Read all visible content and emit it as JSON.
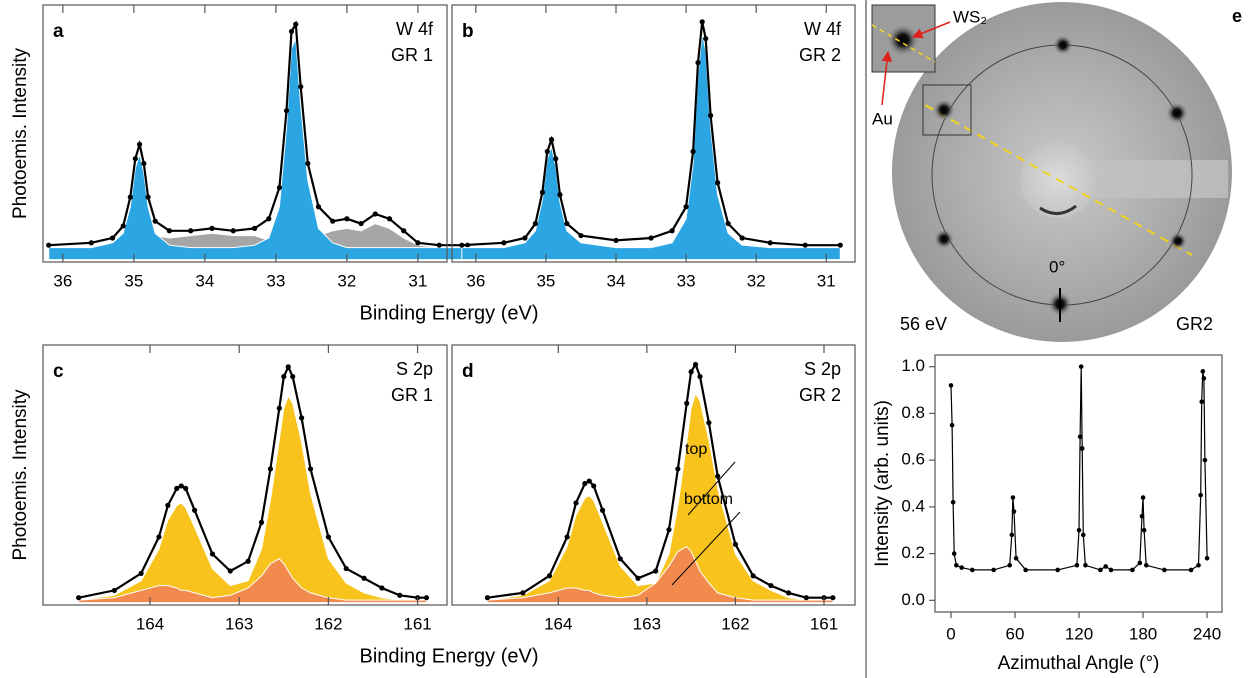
{
  "chart_data": [
    {
      "type": "spectrum",
      "panel_label": "a",
      "title": [
        "W 4f",
        "GR 1"
      ],
      "ylabel": "Photoemis. Intensity",
      "xlabel": "Binding Energy (eV)",
      "x": [
        36.2,
        35.6,
        35.3,
        35.15,
        35.05,
        34.98,
        34.92,
        34.86,
        34.8,
        34.7,
        34.5,
        34.2,
        33.9,
        33.6,
        33.3,
        33.1,
        32.95,
        32.85,
        32.78,
        32.72,
        32.65,
        32.55,
        32.4,
        32.2,
        32.0,
        31.8,
        31.6,
        31.4,
        31.2,
        31.0,
        30.7,
        30.3
      ],
      "xlim": [
        36.28,
        30.59
      ],
      "xticks": [
        36,
        35,
        34,
        33,
        32,
        31
      ],
      "ylim": [
        -0.01,
        1.06
      ],
      "series": [
        {
          "style": "area",
          "color": "#a6a6a6",
          "values": [
            0.05,
            0.05,
            0.05,
            0.05,
            0.05,
            0.05,
            0.06,
            0.07,
            0.09,
            0.1,
            0.09,
            0.1,
            0.11,
            0.1,
            0.1,
            0.08,
            0.08,
            0.09,
            0.11,
            0.12,
            0.1,
            0.09,
            0.1,
            0.12,
            0.13,
            0.12,
            0.15,
            0.13,
            0.09,
            0.06,
            0.05,
            0.05
          ]
        },
        {
          "style": "area",
          "color": "#2ba6e3",
          "values": [
            0.05,
            0.05,
            0.07,
            0.11,
            0.22,
            0.38,
            0.44,
            0.36,
            0.22,
            0.11,
            0.06,
            0.05,
            0.05,
            0.05,
            0.06,
            0.09,
            0.22,
            0.55,
            0.88,
            0.92,
            0.64,
            0.33,
            0.13,
            0.07,
            0.05,
            0.05,
            0.05,
            0.05,
            0.05,
            0.05,
            0.05,
            0.05
          ]
        },
        {
          "style": "points",
          "color": "#000000",
          "values": [
            0.06,
            0.07,
            0.09,
            0.14,
            0.26,
            0.42,
            0.48,
            0.4,
            0.26,
            0.16,
            0.12,
            0.12,
            0.13,
            0.12,
            0.13,
            0.17,
            0.3,
            0.62,
            0.95,
            0.98,
            0.72,
            0.4,
            0.22,
            0.16,
            0.17,
            0.15,
            0.19,
            0.17,
            0.12,
            0.07,
            0.06,
            0.06
          ]
        }
      ]
    },
    {
      "type": "spectrum",
      "panel_label": "b",
      "title": [
        "W 4f",
        "GR 2"
      ],
      "x": [
        36.2,
        35.6,
        35.3,
        35.15,
        35.05,
        34.98,
        34.92,
        34.86,
        34.8,
        34.7,
        34.5,
        34.0,
        33.5,
        33.2,
        33.0,
        32.9,
        32.83,
        32.77,
        32.72,
        32.65,
        32.55,
        32.4,
        32.2,
        31.8,
        31.3,
        30.8
      ],
      "xlim": [
        36.34,
        30.59
      ],
      "xticks": [
        36,
        35,
        34,
        33,
        32,
        31
      ],
      "ylim": [
        -0.01,
        1.06
      ],
      "series": [
        {
          "style": "area",
          "color": "#2ba6e3",
          "values": [
            0.05,
            0.05,
            0.07,
            0.12,
            0.25,
            0.42,
            0.47,
            0.39,
            0.24,
            0.12,
            0.07,
            0.05,
            0.05,
            0.07,
            0.17,
            0.4,
            0.77,
            0.94,
            0.87,
            0.55,
            0.27,
            0.11,
            0.06,
            0.05,
            0.05,
            0.05
          ]
        },
        {
          "style": "points",
          "color": "#000000",
          "values": [
            0.06,
            0.07,
            0.09,
            0.15,
            0.28,
            0.45,
            0.5,
            0.42,
            0.27,
            0.15,
            0.1,
            0.08,
            0.09,
            0.12,
            0.22,
            0.45,
            0.82,
            0.99,
            0.92,
            0.6,
            0.32,
            0.15,
            0.09,
            0.07,
            0.06,
            0.06
          ]
        }
      ]
    },
    {
      "type": "spectrum",
      "panel_label": "c",
      "title": [
        "S 2p",
        "GR 1"
      ],
      "ylabel": "Photoemis. Intensity",
      "xlabel": "Binding Energy (eV)",
      "x": [
        164.8,
        164.4,
        164.1,
        163.9,
        163.8,
        163.7,
        163.65,
        163.6,
        163.5,
        163.3,
        163.1,
        162.9,
        162.75,
        162.65,
        162.55,
        162.5,
        162.45,
        162.4,
        162.3,
        162.2,
        162.0,
        161.8,
        161.6,
        161.4,
        161.2,
        161.0,
        160.9
      ],
      "xlim": [
        165.2,
        160.67
      ],
      "xticks": [
        164,
        163,
        162,
        161
      ],
      "ylim": [
        -0.01,
        1.06
      ],
      "series": [
        {
          "style": "area",
          "color": "#f7c31c",
          "values": [
            0.01,
            0.03,
            0.09,
            0.22,
            0.34,
            0.4,
            0.41,
            0.39,
            0.31,
            0.14,
            0.07,
            0.09,
            0.22,
            0.42,
            0.67,
            0.8,
            0.85,
            0.82,
            0.66,
            0.45,
            0.18,
            0.08,
            0.04,
            0.02,
            0.01,
            0.01,
            0.01
          ]
        },
        {
          "style": "area",
          "color": "#f28a4e",
          "values": [
            0.01,
            0.02,
            0.05,
            0.07,
            0.07,
            0.06,
            0.05,
            0.05,
            0.04,
            0.02,
            0.03,
            0.06,
            0.11,
            0.16,
            0.18,
            0.16,
            0.13,
            0.1,
            0.06,
            0.04,
            0.02,
            0.01,
            0.01,
            0.01,
            0.01,
            0.01,
            0.01
          ]
        },
        {
          "style": "points",
          "color": "#000000",
          "values": [
            0.02,
            0.05,
            0.12,
            0.27,
            0.4,
            0.47,
            0.48,
            0.47,
            0.38,
            0.2,
            0.13,
            0.17,
            0.33,
            0.55,
            0.8,
            0.93,
            0.97,
            0.93,
            0.76,
            0.55,
            0.27,
            0.14,
            0.1,
            0.06,
            0.03,
            0.02,
            0.02
          ]
        }
      ]
    },
    {
      "type": "spectrum",
      "panel_label": "d",
      "title": [
        "S 2p",
        "GR 2"
      ],
      "annotations": [
        "top",
        "bottom"
      ],
      "x": [
        164.8,
        164.4,
        164.1,
        163.9,
        163.8,
        163.7,
        163.65,
        163.6,
        163.5,
        163.3,
        163.1,
        162.9,
        162.75,
        162.65,
        162.55,
        162.5,
        162.45,
        162.4,
        162.3,
        162.2,
        162.0,
        161.8,
        161.6,
        161.4,
        161.2,
        161.0,
        160.9
      ],
      "xlim": [
        165.2,
        160.65
      ],
      "xticks": [
        164,
        163,
        162,
        161
      ],
      "ylim": [
        -0.01,
        1.06
      ],
      "series": [
        {
          "style": "area",
          "color": "#f7c31c",
          "values": [
            0.01,
            0.03,
            0.09,
            0.23,
            0.36,
            0.43,
            0.44,
            0.42,
            0.33,
            0.15,
            0.07,
            0.08,
            0.2,
            0.4,
            0.66,
            0.8,
            0.86,
            0.83,
            0.67,
            0.47,
            0.2,
            0.09,
            0.05,
            0.02,
            0.01,
            0.01,
            0.01
          ]
        },
        {
          "style": "area",
          "color": "#f28a4e",
          "values": [
            0.01,
            0.02,
            0.04,
            0.06,
            0.06,
            0.05,
            0.05,
            0.04,
            0.03,
            0.02,
            0.03,
            0.08,
            0.15,
            0.21,
            0.23,
            0.21,
            0.17,
            0.13,
            0.08,
            0.04,
            0.02,
            0.01,
            0.01,
            0.01,
            0.01,
            0.01,
            0.01
          ]
        },
        {
          "style": "points",
          "color": "#000000",
          "values": [
            0.02,
            0.04,
            0.11,
            0.27,
            0.41,
            0.49,
            0.5,
            0.48,
            0.38,
            0.18,
            0.1,
            0.13,
            0.3,
            0.55,
            0.82,
            0.95,
            0.98,
            0.93,
            0.74,
            0.52,
            0.24,
            0.11,
            0.07,
            0.04,
            0.02,
            0.02,
            0.02
          ]
        }
      ]
    },
    {
      "type": "line",
      "ylabel": "Intensity (arb. units)",
      "xlabel": "Azimuthal Angle (°)",
      "x": [
        0,
        1,
        2,
        3,
        5,
        10,
        20,
        40,
        55,
        57,
        58,
        59,
        61,
        70,
        100,
        118,
        120,
        121,
        122,
        123,
        124,
        126,
        140,
        145,
        150,
        170,
        177,
        179,
        180,
        181,
        183,
        200,
        225,
        232,
        234,
        235,
        236,
        237,
        238,
        240
      ],
      "xlim": [
        -15,
        254
      ],
      "xticks": [
        0,
        60,
        120,
        180,
        240
      ],
      "ylim": [
        -0.05,
        1.05
      ],
      "yticks": [
        {
          "value": 0,
          "label": "0.0"
        },
        0.2,
        0.4,
        0.6,
        0.8,
        {
          "value": 1,
          "label": "1.0"
        }
      ],
      "series": [
        {
          "style": "points",
          "color": "#000000",
          "values": [
            0.92,
            0.75,
            0.42,
            0.2,
            0.15,
            0.14,
            0.13,
            0.13,
            0.15,
            0.28,
            0.44,
            0.38,
            0.18,
            0.13,
            0.13,
            0.15,
            0.3,
            0.7,
            1.0,
            0.65,
            0.28,
            0.15,
            0.13,
            0.145,
            0.13,
            0.13,
            0.16,
            0.36,
            0.44,
            0.3,
            0.15,
            0.13,
            0.13,
            0.15,
            0.45,
            0.85,
            0.98,
            0.95,
            0.6,
            0.18
          ]
        }
      ]
    }
  ],
  "leed_image": {
    "panel_label": "e",
    "inset_label": "WS₂",
    "marker_label": "Au",
    "angle_label": "0°",
    "energy": "56 eV",
    "region": "GR2"
  }
}
